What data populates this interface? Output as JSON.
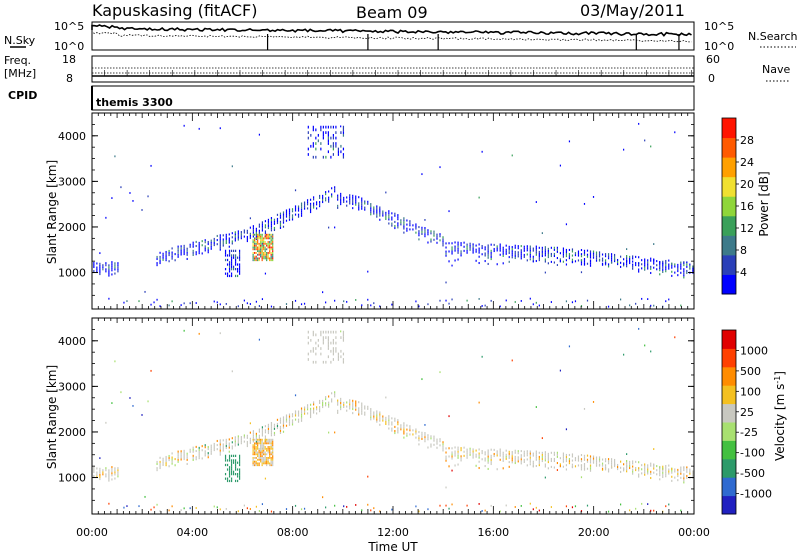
{
  "header": {
    "station": "Kapuskasing (fitACF)",
    "beam": "Beam 09",
    "date": "03/May/2011"
  },
  "noise_panel": {
    "left_label": "N.Sky",
    "right_label": "N.Search",
    "left_ticks": [
      "10^5",
      "10^0"
    ],
    "right_ticks": [
      "10^5",
      "10^0"
    ]
  },
  "freq_panel": {
    "left_label_top": "Freq.",
    "left_label_bottom": "[MHz]",
    "right_label": "Nave",
    "left_ticks": [
      "18",
      "8"
    ],
    "right_ticks": [
      "60",
      "0"
    ]
  },
  "cpid": {
    "label": "CPID",
    "program": "themis 3300"
  },
  "chart_data": [
    {
      "type": "heatmap",
      "name": "power",
      "ylabel": "Slant Range [km]",
      "xlabel": "",
      "y_ticks": [
        "1000",
        "2000",
        "3000",
        "4000"
      ],
      "ylim": [
        200,
        4500
      ],
      "xlim_hours": [
        0,
        24
      ],
      "colorbar": {
        "label": "Power [dB]",
        "ticks": [
          "4",
          "8",
          "12",
          "16",
          "20",
          "24",
          "28"
        ],
        "colors": [
          "#0000ff",
          "#2a3fb8",
          "#3d7a8a",
          "#3aa05a",
          "#8fd63a",
          "#f0e030",
          "#ffa000",
          "#ff5a00",
          "#ff1400"
        ]
      }
    },
    {
      "type": "heatmap",
      "name": "velocity",
      "ylabel": "Slant Range [km]",
      "xlabel": "Time UT",
      "y_ticks": [
        "1000",
        "2000",
        "3000",
        "4000"
      ],
      "ylim": [
        200,
        4500
      ],
      "xlim_hours": [
        0,
        24
      ],
      "x_ticks": [
        "00:00",
        "04:00",
        "08:00",
        "12:00",
        "16:00",
        "20:00",
        "00:00"
      ],
      "colorbar": {
        "label": "Velocity [m s-1]",
        "label_main": "Velocity [m s",
        "label_sup": "-1",
        "label_end": "]",
        "ticks": [
          "1000",
          "500",
          "100",
          "25",
          "-25",
          "-100",
          "-500",
          "-1000"
        ],
        "colors": [
          "#2020c0",
          "#2f6ad0",
          "#2c9a6a",
          "#43c040",
          "#a8e070",
          "#c8c8c0",
          "#f4c020",
          "#ff8c00",
          "#ff4000",
          "#e00000"
        ]
      }
    }
  ]
}
